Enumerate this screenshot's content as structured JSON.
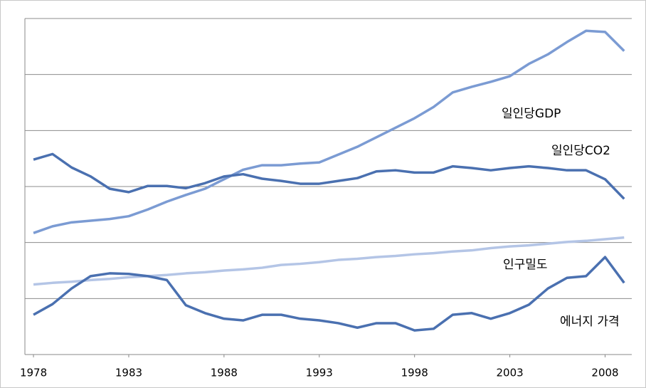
{
  "chart_data": {
    "type": "line",
    "x": [
      1978,
      1979,
      1980,
      1981,
      1982,
      1983,
      1984,
      1985,
      1986,
      1987,
      1988,
      1989,
      1990,
      1991,
      1992,
      1993,
      1994,
      1995,
      1996,
      1997,
      1998,
      1999,
      2000,
      2001,
      2002,
      2003,
      2004,
      2005,
      2006,
      2007,
      2008,
      2009
    ],
    "xlim": [
      1977.55,
      2009.4
    ],
    "xticks": [
      1978,
      1983,
      1988,
      1993,
      1998,
      2003,
      2008
    ],
    "ylim": [
      0,
      6
    ],
    "yticks": [
      0,
      1,
      2,
      3,
      4,
      5,
      6
    ],
    "grid": true,
    "series": [
      {
        "name": "일인당GDP",
        "color": "#7b9bd3",
        "values": [
          2.17,
          2.29,
          2.36,
          2.39,
          2.42,
          2.47,
          2.59,
          2.73,
          2.85,
          2.96,
          3.13,
          3.3,
          3.38,
          3.38,
          3.41,
          3.43,
          3.57,
          3.71,
          3.88,
          4.05,
          4.22,
          4.42,
          4.68,
          4.78,
          4.87,
          4.97,
          5.19,
          5.36,
          5.58,
          5.78,
          5.76,
          5.42
        ]
      },
      {
        "name": "일인당CO2",
        "color": "#4a70b0",
        "values": [
          3.48,
          3.58,
          3.34,
          3.18,
          2.96,
          2.9,
          3.01,
          3.01,
          2.97,
          3.06,
          3.18,
          3.22,
          3.14,
          3.1,
          3.05,
          3.05,
          3.1,
          3.15,
          3.27,
          3.29,
          3.25,
          3.25,
          3.36,
          3.33,
          3.29,
          3.33,
          3.36,
          3.33,
          3.29,
          3.29,
          3.13,
          2.78
        ]
      },
      {
        "name": "인구밀도",
        "color": "#b4c5e6",
        "values": [
          1.25,
          1.28,
          1.3,
          1.33,
          1.35,
          1.38,
          1.4,
          1.42,
          1.45,
          1.47,
          1.5,
          1.52,
          1.55,
          1.6,
          1.62,
          1.65,
          1.69,
          1.71,
          1.74,
          1.76,
          1.79,
          1.81,
          1.84,
          1.86,
          1.9,
          1.93,
          1.95,
          1.98,
          2.01,
          2.03,
          2.06,
          2.09
        ]
      },
      {
        "name": "에너지 가격",
        "color": "#4a70b0",
        "values": [
          0.71,
          0.9,
          1.18,
          1.4,
          1.45,
          1.44,
          1.4,
          1.33,
          0.88,
          0.74,
          0.64,
          0.61,
          0.71,
          0.71,
          0.64,
          0.61,
          0.56,
          0.48,
          0.56,
          0.56,
          0.43,
          0.46,
          0.71,
          0.74,
          0.64,
          0.74,
          0.89,
          1.18,
          1.37,
          1.4,
          1.74,
          1.28
        ]
      }
    ]
  }
}
